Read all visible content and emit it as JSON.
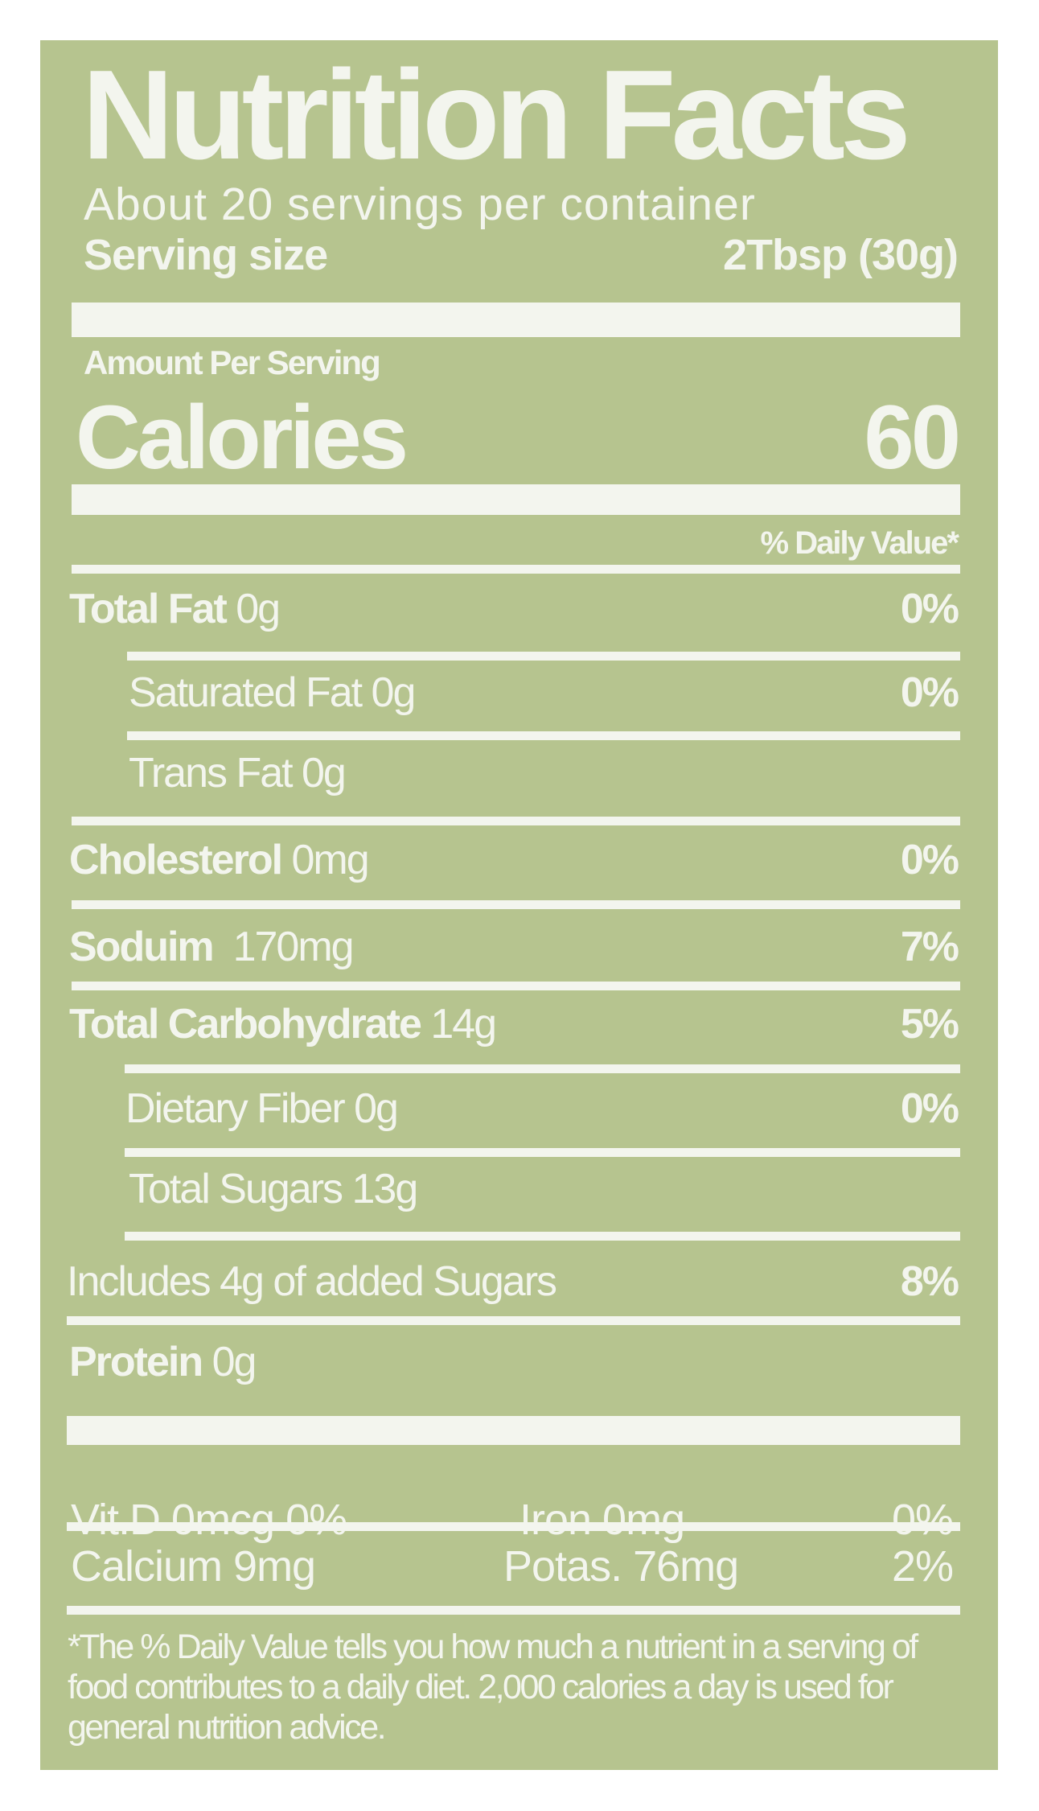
{
  "label": {
    "title": "Nutrition Facts",
    "servings_per_container": "About 20 servings per container",
    "serving_size_label": "Serving size",
    "serving_size_value": "2Tbsp (30g)",
    "amount_per_serving": "Amount Per Serving",
    "calories_label": "Calories",
    "calories_value": "60",
    "daily_value_header": "% Daily Value*",
    "nutrients": [
      {
        "name": "Total Fat",
        "amount": "0g",
        "dv": "0%"
      },
      {
        "name": "Saturated Fat 0g",
        "amount": "",
        "dv": "0%"
      },
      {
        "name": "Trans Fat 0g",
        "amount": "",
        "dv": ""
      },
      {
        "name": "Cholesterol",
        "amount": "0mg",
        "dv": "0%"
      },
      {
        "name": "Soduim",
        "amount": "170mg",
        "dv": "7%"
      },
      {
        "name": "Total Carbohydrate",
        "amount": "14g",
        "dv": "5%"
      },
      {
        "name": "Dietary Fiber 0g",
        "amount": "",
        "dv": "0%"
      },
      {
        "name": "Total Sugars 13g",
        "amount": "",
        "dv": ""
      },
      {
        "name": "Includes 4g of added Sugars",
        "amount": "",
        "dv": "8%"
      },
      {
        "name": "Protein",
        "amount": "0g",
        "dv": ""
      }
    ],
    "minerals": [
      {
        "a": "Vit.D 0mcg 0%",
        "b": "Iron 0mg",
        "c": "0%"
      },
      {
        "a": "Calcium 9mg",
        "b": "Potas. 76mg",
        "c": "2%"
      }
    ],
    "footnote": "*The % Daily Value tells you how much a nutrient in a serving of food contributes to a daily diet. 2,000 calories a day is used for general nutrition advice.",
    "colors": {
      "background": "#b6c48f",
      "text": "#f3f5ee"
    }
  }
}
